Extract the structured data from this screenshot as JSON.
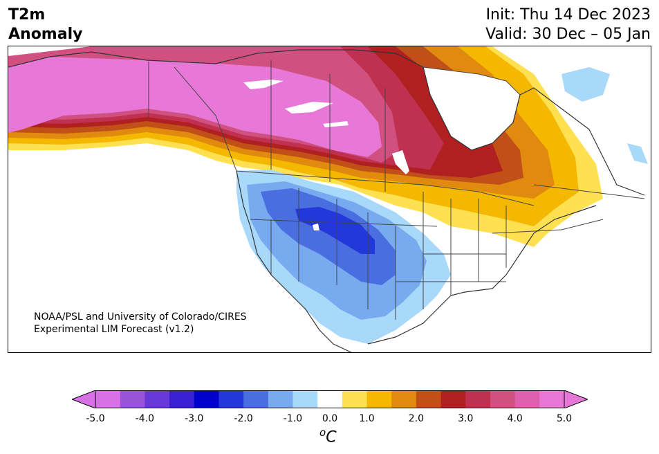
{
  "header": {
    "title_line1": "T2m",
    "title_line2": "Anomaly",
    "init_text": "Init: Thu 14 Dec 2023",
    "valid_text": "Valid: 30 Dec – 05 Jan"
  },
  "credit": {
    "line1": "NOAA/PSL and University of Colorado/CIRES",
    "line2": "Experimental LIM Forecast (v1.2)"
  },
  "colorbar": {
    "unit_base": "C",
    "unit_sup": "o",
    "ticks": [
      "-5.0",
      "-4.0",
      "-3.0",
      "-2.0",
      "-1.0",
      "0.0",
      "1.0",
      "2.0",
      "3.0",
      "4.0",
      "5.0"
    ],
    "tick_values": [
      -5,
      -4,
      -3,
      -2,
      -1,
      0,
      1,
      2,
      3,
      4,
      5
    ],
    "bins": [
      -5.0,
      -4.5,
      -4.0,
      -3.5,
      -3.0,
      -2.5,
      -2.0,
      -1.5,
      -1.0,
      -0.5,
      0.5,
      1.0,
      1.5,
      2.0,
      2.5,
      3.0,
      3.5,
      4.0,
      4.5,
      5.0
    ],
    "colors": [
      "#d870e6",
      "#9a52d8",
      "#6a38d8",
      "#3a20d0",
      "#0000cc",
      "#2238d8",
      "#4a6ee0",
      "#78aaf0",
      "#a8d8fa",
      "#ffffff",
      "#ffe050",
      "#f5b800",
      "#e08a10",
      "#c05018",
      "#b02020",
      "#c03050",
      "#d05080",
      "#e060b0",
      "#e878d8"
    ],
    "under_color": "#d870e6",
    "over_color": "#e878d8"
  },
  "map_regions": [
    {
      "name": "northwest-warm-anomaly",
      "color": "#e878d8"
    },
    {
      "name": "southwest-cold-anomaly",
      "color": "#2238d8"
    },
    {
      "name": "northeast-warm-anomaly",
      "color": "#f5b800"
    },
    {
      "name": "greenland-cool-anomaly",
      "color": "#a8d8fa"
    }
  ]
}
